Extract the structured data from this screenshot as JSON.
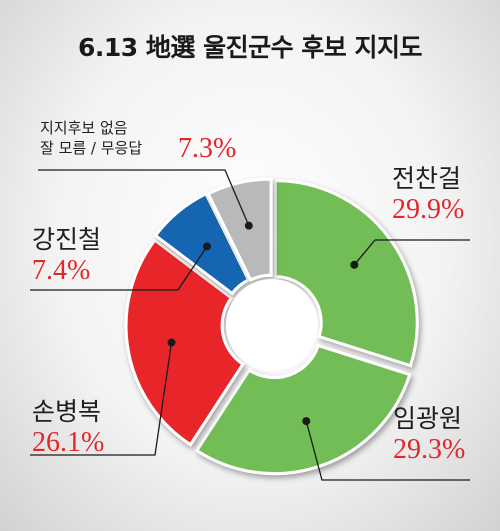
{
  "title": "6.13 地選 울진군수 후보 지지도",
  "chart_data": {
    "type": "pie",
    "title": "6.13 地選 울진군수 후보 지지도",
    "slices": [
      {
        "label": "전찬걸",
        "value": 29.9,
        "value_label": "29.9%",
        "color": "#72bd56"
      },
      {
        "label": "임광원",
        "value": 29.3,
        "value_label": "29.3%",
        "color": "#72bd56"
      },
      {
        "label": "손병복",
        "value": 26.1,
        "value_label": "26.1%",
        "color": "#e8262b"
      },
      {
        "label": "강진철",
        "value": 7.4,
        "value_label": "7.4%",
        "color": "#1465b2"
      },
      {
        "label_lines": [
          "지지후보 없음",
          "잘 모름 / 무응답"
        ],
        "value": 7.3,
        "value_label": "7.3%",
        "color": "#b8b9bb"
      }
    ]
  }
}
